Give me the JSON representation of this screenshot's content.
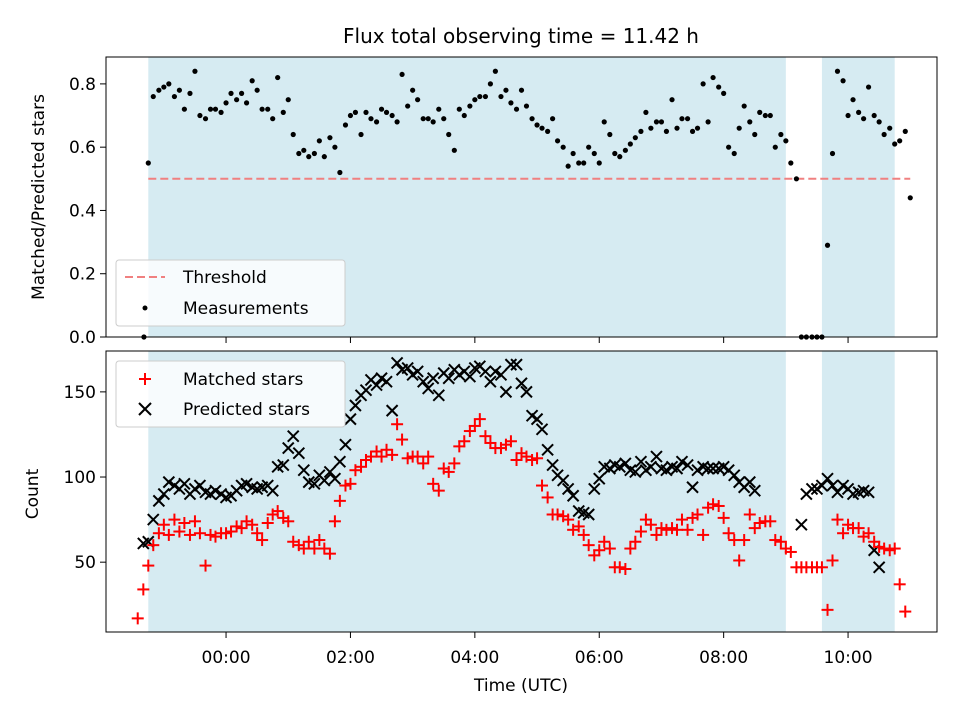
{
  "chart_data": [
    {
      "type": "scatter",
      "title": "Flux total observing time = 11.42 h",
      "xlabel": "",
      "ylabel": "Matched/Predicted stars",
      "x_unit": "hours (UTC)",
      "xlim": [
        -1.93,
        11.43
      ],
      "ylim": [
        0.0,
        0.885
      ],
      "yticks": [
        "0.0",
        "0.2",
        "0.4",
        "0.6",
        "0.8"
      ],
      "ytick_values": [
        0.0,
        0.2,
        0.4,
        0.6,
        0.8
      ],
      "shaded_intervals": [
        [
          -1.25,
          9.0
        ],
        [
          9.58,
          10.75
        ]
      ],
      "threshold": {
        "name": "Threshold",
        "value": 0.5,
        "color": "#f08080",
        "style": "dashed"
      },
      "legend": {
        "placement": "lower-left",
        "entries": [
          "Threshold",
          "Measurements"
        ]
      },
      "series": [
        {
          "name": "Measurements",
          "color": "#000000",
          "marker": "dot",
          "points": [
            [
              -1.32,
              0.0
            ],
            [
              -1.25,
              0.55
            ],
            [
              -1.17,
              0.76
            ],
            [
              -1.08,
              0.78
            ],
            [
              -1.0,
              0.79
            ],
            [
              -0.92,
              0.8
            ],
            [
              -0.83,
              0.76
            ],
            [
              -0.75,
              0.78
            ],
            [
              -0.67,
              0.72
            ],
            [
              -0.58,
              0.77
            ],
            [
              -0.5,
              0.84
            ],
            [
              -0.42,
              0.7
            ],
            [
              -0.33,
              0.69
            ],
            [
              -0.25,
              0.72
            ],
            [
              -0.17,
              0.72
            ],
            [
              -0.08,
              0.71
            ],
            [
              0.0,
              0.74
            ],
            [
              0.08,
              0.77
            ],
            [
              0.17,
              0.75
            ],
            [
              0.25,
              0.77
            ],
            [
              0.33,
              0.74
            ],
            [
              0.42,
              0.81
            ],
            [
              0.5,
              0.78
            ],
            [
              0.58,
              0.72
            ],
            [
              0.67,
              0.72
            ],
            [
              0.75,
              0.69
            ],
            [
              0.83,
              0.82
            ],
            [
              0.92,
              0.71
            ],
            [
              1.0,
              0.75
            ],
            [
              1.08,
              0.64
            ],
            [
              1.17,
              0.58
            ],
            [
              1.25,
              0.59
            ],
            [
              1.33,
              0.57
            ],
            [
              1.42,
              0.58
            ],
            [
              1.5,
              0.62
            ],
            [
              1.58,
              0.57
            ],
            [
              1.67,
              0.63
            ],
            [
              1.75,
              0.6
            ],
            [
              1.83,
              0.52
            ],
            [
              1.92,
              0.67
            ],
            [
              2.0,
              0.7
            ],
            [
              2.08,
              0.71
            ],
            [
              2.17,
              0.64
            ],
            [
              2.25,
              0.71
            ],
            [
              2.33,
              0.69
            ],
            [
              2.42,
              0.68
            ],
            [
              2.5,
              0.72
            ],
            [
              2.58,
              0.71
            ],
            [
              2.67,
              0.7
            ],
            [
              2.75,
              0.68
            ],
            [
              2.83,
              0.83
            ],
            [
              2.92,
              0.73
            ],
            [
              3.0,
              0.78
            ],
            [
              3.08,
              0.75
            ],
            [
              3.17,
              0.69
            ],
            [
              3.25,
              0.69
            ],
            [
              3.33,
              0.68
            ],
            [
              3.42,
              0.72
            ],
            [
              3.5,
              0.69
            ],
            [
              3.58,
              0.64
            ],
            [
              3.67,
              0.59
            ],
            [
              3.75,
              0.72
            ],
            [
              3.83,
              0.7
            ],
            [
              3.92,
              0.73
            ],
            [
              4.0,
              0.75
            ],
            [
              4.08,
              0.76
            ],
            [
              4.17,
              0.76
            ],
            [
              4.25,
              0.8
            ],
            [
              4.33,
              0.84
            ],
            [
              4.42,
              0.76
            ],
            [
              4.5,
              0.78
            ],
            [
              4.58,
              0.74
            ],
            [
              4.67,
              0.72
            ],
            [
              4.75,
              0.78
            ],
            [
              4.83,
              0.73
            ],
            [
              4.92,
              0.69
            ],
            [
              5.0,
              0.67
            ],
            [
              5.08,
              0.66
            ],
            [
              5.17,
              0.65
            ],
            [
              5.25,
              0.69
            ],
            [
              5.33,
              0.62
            ],
            [
              5.42,
              0.6
            ],
            [
              5.5,
              0.54
            ],
            [
              5.58,
              0.58
            ],
            [
              5.67,
              0.55
            ],
            [
              5.75,
              0.55
            ],
            [
              5.83,
              0.6
            ],
            [
              5.92,
              0.58
            ],
            [
              6.0,
              0.55
            ],
            [
              6.08,
              0.68
            ],
            [
              6.17,
              0.64
            ],
            [
              6.25,
              0.58
            ],
            [
              6.33,
              0.57
            ],
            [
              6.42,
              0.59
            ],
            [
              6.5,
              0.61
            ],
            [
              6.58,
              0.63
            ],
            [
              6.67,
              0.65
            ],
            [
              6.75,
              0.71
            ],
            [
              6.83,
              0.66
            ],
            [
              6.92,
              0.68
            ],
            [
              7.0,
              0.68
            ],
            [
              7.08,
              0.65
            ],
            [
              7.17,
              0.75
            ],
            [
              7.25,
              0.66
            ],
            [
              7.33,
              0.69
            ],
            [
              7.42,
              0.69
            ],
            [
              7.5,
              0.65
            ],
            [
              7.58,
              0.66
            ],
            [
              7.67,
              0.8
            ],
            [
              7.75,
              0.68
            ],
            [
              7.83,
              0.82
            ],
            [
              7.92,
              0.79
            ],
            [
              8.0,
              0.77
            ],
            [
              8.08,
              0.6
            ],
            [
              8.17,
              0.58
            ],
            [
              8.25,
              0.66
            ],
            [
              8.33,
              0.73
            ],
            [
              8.42,
              0.68
            ],
            [
              8.5,
              0.64
            ],
            [
              8.58,
              0.71
            ],
            [
              8.67,
              0.7
            ],
            [
              8.75,
              0.7
            ],
            [
              8.83,
              0.6
            ],
            [
              8.92,
              0.64
            ],
            [
              9.0,
              0.62
            ],
            [
              9.08,
              0.55
            ],
            [
              9.17,
              0.5
            ],
            [
              9.25,
              0.0
            ],
            [
              9.33,
              0.0
            ],
            [
              9.42,
              0.0
            ],
            [
              9.5,
              0.0
            ],
            [
              9.58,
              0.0
            ],
            [
              9.67,
              0.29
            ],
            [
              9.75,
              0.58
            ],
            [
              9.83,
              0.84
            ],
            [
              9.92,
              0.81
            ],
            [
              10.0,
              0.7
            ],
            [
              10.08,
              0.75
            ],
            [
              10.17,
              0.71
            ],
            [
              10.25,
              0.69
            ],
            [
              10.33,
              0.79
            ],
            [
              10.42,
              0.7
            ],
            [
              10.5,
              0.68
            ],
            [
              10.58,
              0.64
            ],
            [
              10.67,
              0.66
            ],
            [
              10.75,
              0.61
            ],
            [
              10.83,
              0.62
            ],
            [
              10.92,
              0.65
            ],
            [
              11.0,
              0.44
            ]
          ]
        }
      ]
    },
    {
      "type": "scatter",
      "title": "",
      "xlabel": "Time (UTC)",
      "ylabel": "Count",
      "x_unit": "hours (UTC)",
      "xlim": [
        -1.93,
        11.43
      ],
      "ylim": [
        9.0,
        174.0
      ],
      "xticks": [
        "00:00",
        "02:00",
        "04:00",
        "06:00",
        "08:00",
        "10:00"
      ],
      "xtick_values": [
        0,
        2,
        4,
        6,
        8,
        10
      ],
      "yticks": [
        "50",
        "100",
        "150"
      ],
      "ytick_values": [
        50,
        100,
        150
      ],
      "shaded_intervals": [
        [
          -1.25,
          9.0
        ],
        [
          9.58,
          10.75
        ]
      ],
      "legend": {
        "placement": "upper-left",
        "entries": [
          "Matched stars",
          "Predicted stars"
        ]
      },
      "x": [
        -1.42,
        -1.33,
        -1.25,
        -1.17,
        -1.08,
        -1.0,
        -0.92,
        -0.83,
        -0.75,
        -0.67,
        -0.58,
        -0.5,
        -0.42,
        -0.33,
        -0.25,
        -0.17,
        -0.08,
        0.0,
        0.08,
        0.17,
        0.25,
        0.33,
        0.42,
        0.5,
        0.58,
        0.67,
        0.75,
        0.83,
        0.92,
        1.0,
        1.08,
        1.17,
        1.25,
        1.33,
        1.42,
        1.5,
        1.58,
        1.67,
        1.75,
        1.83,
        1.92,
        2.0,
        2.08,
        2.17,
        2.25,
        2.33,
        2.42,
        2.5,
        2.58,
        2.67,
        2.75,
        2.83,
        2.92,
        3.0,
        3.08,
        3.17,
        3.25,
        3.33,
        3.42,
        3.5,
        3.58,
        3.67,
        3.75,
        3.83,
        3.92,
        4.0,
        4.08,
        4.17,
        4.25,
        4.33,
        4.42,
        4.5,
        4.58,
        4.67,
        4.75,
        4.83,
        4.92,
        5.0,
        5.08,
        5.17,
        5.25,
        5.33,
        5.42,
        5.5,
        5.58,
        5.67,
        5.75,
        5.83,
        5.92,
        6.0,
        6.08,
        6.17,
        6.25,
        6.33,
        6.42,
        6.5,
        6.58,
        6.67,
        6.75,
        6.83,
        6.92,
        7.0,
        7.08,
        7.17,
        7.25,
        7.33,
        7.42,
        7.5,
        7.58,
        7.67,
        7.75,
        7.83,
        7.92,
        8.0,
        8.08,
        8.17,
        8.25,
        8.33,
        8.42,
        8.5,
        8.58,
        8.67,
        8.75,
        8.83,
        8.92,
        9.0,
        9.08,
        9.17,
        9.25,
        9.33,
        9.42,
        9.5,
        9.58,
        9.67,
        9.75,
        9.83,
        9.92,
        10.0,
        10.08,
        10.17,
        10.25,
        10.33,
        10.42,
        10.5,
        10.58,
        10.67,
        10.75,
        10.83,
        10.92,
        11.0,
        11.08
      ],
      "series": [
        {
          "name": "Matched stars",
          "color": "#ff0000",
          "marker": "plus",
          "values": [
            17,
            34,
            48,
            60,
            67,
            72,
            66,
            75,
            68,
            73,
            66,
            74,
            67,
            48,
            66,
            65,
            67,
            67,
            68,
            71,
            70,
            74,
            72,
            67,
            63,
            73,
            78,
            80,
            76,
            74,
            62,
            60,
            58,
            62,
            58,
            63,
            58,
            55,
            74,
            86,
            95,
            96,
            104,
            106,
            110,
            112,
            115,
            112,
            116,
            113,
            131,
            122,
            111,
            112,
            112,
            108,
            112,
            96,
            92,
            105,
            103,
            108,
            118,
            121,
            127,
            130,
            134,
            124,
            120,
            117,
            117,
            119,
            121,
            110,
            114,
            112,
            110,
            111,
            95,
            88,
            78,
            78,
            77,
            75,
            69,
            71,
            66,
            60,
            54,
            57,
            62,
            58,
            47,
            47,
            46,
            58,
            62,
            68,
            75,
            72,
            66,
            70,
            69,
            70,
            69,
            75,
            69,
            76,
            78,
            66,
            82,
            84,
            83,
            76,
            67,
            63,
            51,
            63,
            78,
            70,
            73,
            74,
            74,
            63,
            62,
            58,
            56,
            47,
            47,
            47,
            47,
            47,
            47,
            22,
            51,
            75,
            67,
            72,
            70,
            70,
            65,
            67,
            62,
            59,
            58,
            57,
            58,
            37,
            21
          ]
        },
        {
          "name": "Predicted stars",
          "color": "#000000",
          "marker": "x",
          "values": [
            null,
            61,
            62,
            75,
            86,
            90,
            97,
            95,
            93,
            96,
            90,
            93,
            95,
            91,
            90,
            92,
            90,
            88,
            89,
            92,
            95,
            96,
            94,
            93,
            94,
            95,
            92,
            106,
            107,
            117,
            124,
            114,
            104,
            97,
            96,
            101,
            98,
            103,
            99,
            109,
            119,
            134,
            142,
            148,
            151,
            157,
            154,
            158,
            156,
            139,
            167,
            163,
            164,
            160,
            162,
            156,
            152,
            158,
            148,
            161,
            158,
            163,
            160,
            162,
            159,
            164,
            165,
            162,
            156,
            162,
            160,
            150,
            166,
            166,
            155,
            150,
            136,
            134,
            128,
            116,
            107,
            101,
            98,
            93,
            89,
            80,
            79,
            78,
            93,
            99,
            106,
            105,
            107,
            106,
            108,
            104,
            103,
            109,
            104,
            106,
            112,
            105,
            104,
            106,
            105,
            109,
            107,
            94,
            104,
            106,
            105,
            105,
            105,
            106,
            104,
            101,
            97,
            94,
            97,
            92,
            null,
            null,
            null,
            null,
            null,
            null,
            null,
            null,
            72,
            90,
            93,
            93,
            95,
            99,
            95,
            91,
            95,
            93,
            90,
            91,
            92,
            91,
            57,
            47
          ]
        }
      ]
    }
  ]
}
